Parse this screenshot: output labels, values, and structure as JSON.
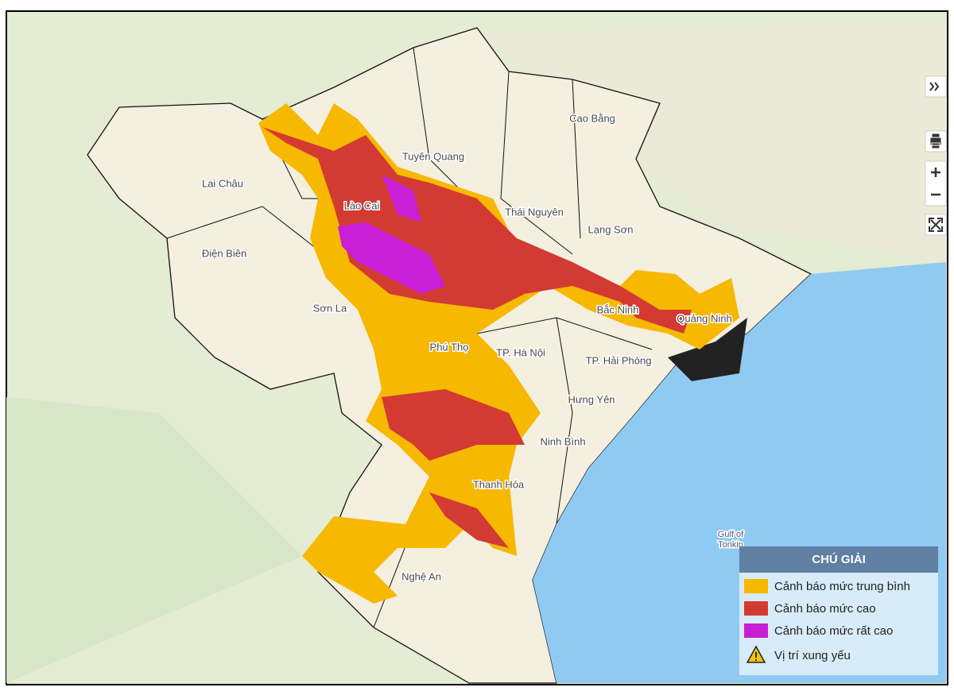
{
  "map": {
    "places": [
      "Cao Bằng",
      "Tuyên Quang",
      "Lai Châu",
      "Lào Cai",
      "Thái Nguyên",
      "Lạng Sơn",
      "Điện Biên",
      "Sơn La",
      "Bắc Ninh",
      "Quảng Ninh",
      "Phú Thọ",
      "TP. Hà Nội",
      "TP. Hải Phòng",
      "Hưng Yên",
      "Ninh Bình",
      "Thanh Hóa",
      "Nghệ An"
    ],
    "sea_label": [
      "Gulf of",
      "Tonkin"
    ]
  },
  "legend": {
    "title": "CHÚ GIẢI",
    "items": [
      "Cảnh báo mức trung bình",
      "Cảnh báo mức cao",
      "Cảnh báo mức rất cao",
      "Vị trí xung yếu"
    ]
  }
}
